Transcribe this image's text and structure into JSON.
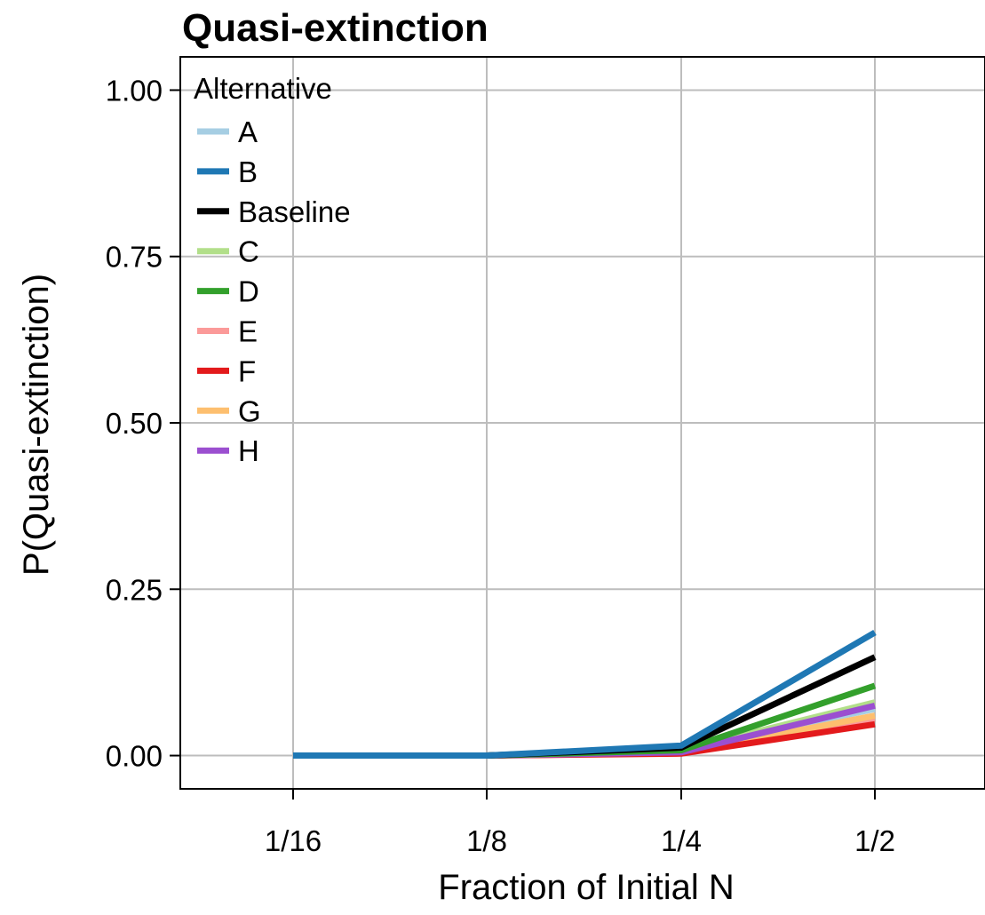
{
  "chart_data": {
    "type": "line",
    "title": "Quasi-extinction",
    "xlabel": "Fraction of Initial N",
    "ylabel": "P(Quasi-extinction)",
    "categories": [
      "1/16",
      "1/8",
      "1/4",
      "1/2"
    ],
    "ylim": [
      -0.05,
      1.05
    ],
    "yticks": [
      "0.00",
      "0.25",
      "0.50",
      "0.75",
      "1.00"
    ],
    "ytick_values": [
      0,
      0.25,
      0.5,
      0.75,
      1.0
    ],
    "grid": true,
    "legend": {
      "title": "Alternative",
      "placement": "top-left"
    },
    "series": [
      {
        "name": "A",
        "color": "#a6cee3",
        "values": [
          0,
          0,
          0.01,
          0.07
        ]
      },
      {
        "name": "B",
        "color": "#1f78b4",
        "values": [
          0,
          0,
          0.015,
          0.185
        ]
      },
      {
        "name": "Baseline",
        "color": "#000000",
        "values": [
          0,
          0,
          0.012,
          0.148
        ]
      },
      {
        "name": "C",
        "color": "#b2df8a",
        "values": [
          0,
          0,
          0.008,
          0.08
        ]
      },
      {
        "name": "D",
        "color": "#33a02c",
        "values": [
          0,
          0,
          0.008,
          0.105
        ]
      },
      {
        "name": "E",
        "color": "#fb9a99",
        "values": [
          0,
          0,
          0.004,
          0.055
        ]
      },
      {
        "name": "F",
        "color": "#e31a1c",
        "values": [
          0,
          0,
          0.003,
          0.047
        ]
      },
      {
        "name": "G",
        "color": "#fdbf6f",
        "values": [
          0,
          0,
          0.004,
          0.06
        ]
      },
      {
        "name": "H",
        "color": "#9b4fd0",
        "values": [
          0,
          0,
          0.005,
          0.075
        ]
      }
    ]
  }
}
